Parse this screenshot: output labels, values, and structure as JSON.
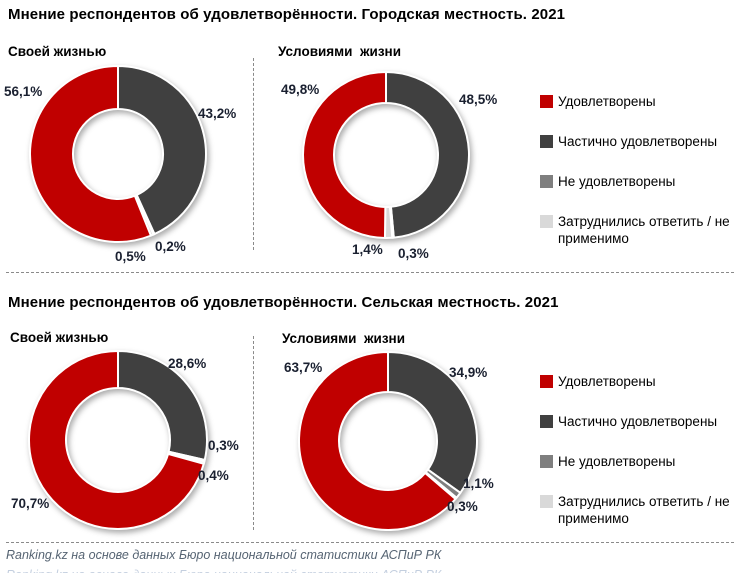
{
  "sections": [
    {
      "title": "Мнение респондентов об удовлетворённости. Городская местность. 2021"
    },
    {
      "title": "Мнение респондентов об удовлетворённости. Сельская местность. 2021"
    }
  ],
  "legend": {
    "position": "right",
    "items": [
      {
        "label": "Удовлетворены",
        "color": "#C00000"
      },
      {
        "label": "Частично удовлетворены",
        "color": "#404040"
      },
      {
        "label": "Не удовлетворены",
        "color": "#7F7F7F"
      },
      {
        "label": "Затруднились ответить / не применимо",
        "color": "#D9D9D9"
      }
    ]
  },
  "footer": {
    "source": "Ranking.kz на основе данных Бюро национальной статистики АСПиР РК"
  },
  "chart_data": [
    {
      "type": "pie",
      "subtype": "donut",
      "title": "Своей жизнью",
      "section": "Городская местность. 2021",
      "categories": [
        "Удовлетворены",
        "Частично удовлетворены",
        "Не удовлетворены",
        "Затруднились ответить / не применимо"
      ],
      "values": [
        56.1,
        43.2,
        0.2,
        0.5
      ],
      "display_labels": [
        "56,1%",
        "43,2%",
        "0,2%",
        "0,5%"
      ],
      "colors": [
        "#C00000",
        "#404040",
        "#7F7F7F",
        "#D9D9D9"
      ],
      "draw_order": [
        1,
        2,
        3,
        0
      ],
      "start_angle_deg": 0
    },
    {
      "type": "pie",
      "subtype": "donut",
      "title": "Условиями  жизни",
      "section": "Городская местность. 2021",
      "categories": [
        "Удовлетворены",
        "Частично удовлетворены",
        "Не удовлетворены",
        "Затруднились ответить / не применимо"
      ],
      "values": [
        49.8,
        48.5,
        0.3,
        1.4
      ],
      "display_labels": [
        "49,8%",
        "48,5%",
        "0,3%",
        "1,4%"
      ],
      "colors": [
        "#C00000",
        "#404040",
        "#7F7F7F",
        "#D9D9D9"
      ],
      "draw_order": [
        1,
        2,
        3,
        0
      ],
      "start_angle_deg": 0
    },
    {
      "type": "pie",
      "subtype": "donut",
      "title": "Своей жизнью",
      "section": "Сельская местность. 2021",
      "categories": [
        "Удовлетворены",
        "Частично удовлетворены",
        "Не удовлетворены",
        "Затруднились ответить / не применимо"
      ],
      "values": [
        70.7,
        28.6,
        0.3,
        0.4
      ],
      "display_labels": [
        "70,7%",
        "28,6%",
        "0,3%",
        "0,4%"
      ],
      "colors": [
        "#C00000",
        "#404040",
        "#7F7F7F",
        "#D9D9D9"
      ],
      "draw_order": [
        1,
        2,
        3,
        0
      ],
      "start_angle_deg": 0
    },
    {
      "type": "pie",
      "subtype": "donut",
      "title": "Условиями  жизни",
      "section": "Сельская местность. 2021",
      "categories": [
        "Удовлетворены",
        "Частично удовлетворены",
        "Не удовлетворены",
        "Затруднились ответить / не применимо"
      ],
      "values": [
        63.7,
        34.9,
        1.1,
        0.3
      ],
      "display_labels": [
        "63,7%",
        "34,9%",
        "1,1%",
        "0,3%"
      ],
      "colors": [
        "#C00000",
        "#404040",
        "#7F7F7F",
        "#D9D9D9"
      ],
      "draw_order": [
        1,
        2,
        3,
        0
      ],
      "start_angle_deg": 0
    }
  ]
}
